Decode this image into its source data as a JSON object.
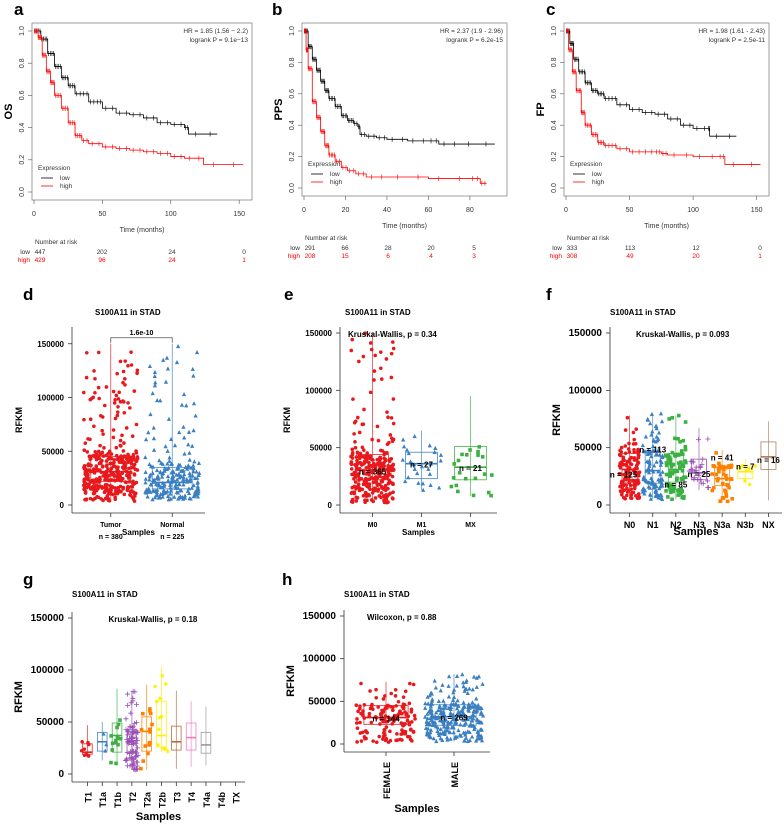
{
  "figure": {
    "km_panels": [
      {
        "letter": "a",
        "ylabel": "OS",
        "xlabel": "Time (months)",
        "hr_text": "HR = 1.85 (1.56 − 2.2)",
        "p_text": "logrank P = 9.1e−13",
        "legend_title": "Expression",
        "legend": [
          "low",
          "high"
        ],
        "risk_title": "Number at risk",
        "risk_labels": [
          "low",
          "high"
        ],
        "risk_low": [
          "447",
          "202",
          "24",
          "0"
        ],
        "risk_high": [
          "429",
          "96",
          "24",
          "1"
        ]
      },
      {
        "letter": "b",
        "ylabel": "PPS",
        "xlabel": "Time (months)",
        "hr_text": "HR = 2.37 (1.9 - 2.96)",
        "p_text": "logrank P = 6.2e-15",
        "legend_title": "Expression",
        "legend": [
          "low",
          "high"
        ],
        "risk_title": "Number at risk",
        "risk_labels": [
          "low",
          "high"
        ],
        "risk_low": [
          "291",
          "66",
          "28",
          "20",
          "5"
        ],
        "risk_high": [
          "208",
          "15",
          "6",
          "4",
          "3"
        ]
      },
      {
        "letter": "c",
        "ylabel": "FP",
        "xlabel": "Time (months)",
        "hr_text": "HR = 1.98 (1.61 - 2.43)",
        "p_text": "logrank P = 2.5e-11",
        "legend_title": "Expression",
        "legend": [
          "low",
          "high"
        ],
        "risk_title": "Number at risk",
        "risk_labels": [
          "low",
          "high"
        ],
        "risk_low": [
          "333",
          "113",
          "12",
          "0"
        ],
        "risk_high": [
          "308",
          "49",
          "20",
          "1"
        ]
      }
    ],
    "box_panels": [
      {
        "letter": "d",
        "title": "S100A11 in STAD",
        "ylabel": "RFKM",
        "xlabel": "Samples",
        "stat_text": "1.6e-10",
        "categories": [
          "Tumor",
          "Normal"
        ],
        "category_sublabels": [
          "n = 380",
          "n = 225"
        ],
        "n_labels": []
      },
      {
        "letter": "e",
        "title": "S100A11 in STAD",
        "ylabel": "RFKM",
        "xlabel": "Samples",
        "stat_text": "Kruskal-Wallis, p = 0.34",
        "categories": [
          "M0",
          "M1",
          "MX"
        ],
        "n_labels": [
          "n = 365",
          "n = 27",
          "n = 21"
        ]
      },
      {
        "letter": "f",
        "title": "S100A11 in STAD",
        "ylabel": "RFKM",
        "xlabel": "Samples",
        "stat_text": "Kruskal-Wallis, p = 0.093",
        "categories": [
          "N0",
          "N1",
          "N2",
          "N3",
          "N3a",
          "N3b",
          "NX"
        ],
        "n_labels": [
          "n = 125",
          "n = 113",
          "n = 85",
          "n = 25",
          "n = 41",
          "n = 7",
          "n = 16"
        ]
      },
      {
        "letter": "g",
        "title": "S100A11 in STAD",
        "ylabel": "RFKM",
        "xlabel": "Samples",
        "stat_text": "Kruskal-Wallis, p = 0.18",
        "categories": [
          "T1",
          "T1a",
          "T1b",
          "T2",
          "T2a",
          "T2b",
          "T3",
          "T4",
          "T4a",
          "T4b",
          "TX"
        ],
        "n_labels": []
      },
      {
        "letter": "h",
        "title": "S100A11 in STAD",
        "ylabel": "RFKM",
        "xlabel": "Samples",
        "stat_text": "Wilcoxon, p = 0.88",
        "categories": [
          "FEMALE",
          "MALE"
        ],
        "n_labels": [
          "n = 144",
          "n = 269"
        ]
      }
    ]
  },
  "chart_data": [
    {
      "type": "line",
      "panel": "a",
      "title": "",
      "xlabel": "Time (months)",
      "ylabel": "OS",
      "xlim": [
        0,
        155
      ],
      "ylim": [
        0,
        1
      ],
      "xticks": [
        0,
        50,
        100,
        150
      ],
      "yticks": [
        0.0,
        0.2,
        0.4,
        0.6,
        0.8,
        1.0
      ],
      "legend_position": "bottom-left",
      "series": [
        {
          "name": "low",
          "color": "#000000",
          "x": [
            0,
            5,
            10,
            15,
            20,
            25,
            30,
            40,
            50,
            60,
            70,
            80,
            90,
            100,
            110,
            113,
            134
          ],
          "y": [
            1.0,
            0.95,
            0.86,
            0.78,
            0.71,
            0.66,
            0.61,
            0.56,
            0.52,
            0.49,
            0.48,
            0.46,
            0.43,
            0.42,
            0.4,
            0.36,
            0.36
          ]
        },
        {
          "name": "high",
          "color": "#ff0000",
          "x": [
            0,
            3,
            6,
            9,
            12,
            15,
            20,
            25,
            30,
            35,
            40,
            50,
            60,
            70,
            80,
            90,
            100,
            110,
            124,
            153
          ],
          "y": [
            1.0,
            0.96,
            0.85,
            0.75,
            0.68,
            0.6,
            0.52,
            0.43,
            0.35,
            0.32,
            0.3,
            0.28,
            0.27,
            0.26,
            0.25,
            0.24,
            0.22,
            0.21,
            0.17,
            0.17
          ]
        }
      ],
      "annotations": [
        "HR = 1.85 (1.56 − 2.2)",
        "logrank P = 9.1e−13"
      ]
    },
    {
      "type": "line",
      "panel": "b",
      "title": "",
      "xlabel": "Time (months)",
      "ylabel": "PPS",
      "xlim": [
        0,
        95
      ],
      "ylim": [
        0,
        1
      ],
      "xticks": [
        0,
        20,
        40,
        60,
        80
      ],
      "yticks": [
        0.0,
        0.2,
        0.4,
        0.6,
        0.8,
        1.0
      ],
      "legend_position": "bottom-left",
      "series": [
        {
          "name": "low",
          "color": "#000000",
          "x": [
            0,
            2,
            4,
            6,
            8,
            10,
            12,
            15,
            18,
            21,
            24,
            26,
            27,
            30,
            35,
            40,
            50,
            60,
            65,
            75,
            92
          ],
          "y": [
            1.0,
            0.9,
            0.82,
            0.75,
            0.68,
            0.62,
            0.57,
            0.52,
            0.46,
            0.43,
            0.41,
            0.39,
            0.34,
            0.33,
            0.32,
            0.31,
            0.3,
            0.3,
            0.28,
            0.28,
            0.28
          ]
        },
        {
          "name": "high",
          "color": "#ff0000",
          "x": [
            0,
            1,
            2,
            4,
            6,
            8,
            10,
            12,
            15,
            18,
            21,
            25,
            30,
            40,
            60,
            80,
            85,
            88
          ],
          "y": [
            1.0,
            0.88,
            0.76,
            0.55,
            0.45,
            0.36,
            0.27,
            0.21,
            0.17,
            0.13,
            0.11,
            0.09,
            0.07,
            0.07,
            0.06,
            0.06,
            0.03,
            0.03
          ]
        }
      ],
      "annotations": [
        "HR = 2.37 (1.9 - 2.96)",
        "logrank P = 6.2e-15"
      ]
    },
    {
      "type": "line",
      "panel": "c",
      "title": "",
      "xlabel": "Time (months)",
      "ylabel": "FP",
      "xlim": [
        0,
        155
      ],
      "ylim": [
        0,
        1
      ],
      "xticks": [
        0,
        50,
        100,
        150
      ],
      "yticks": [
        0.0,
        0.2,
        0.4,
        0.6,
        0.8,
        1.0
      ],
      "legend_position": "bottom-left",
      "series": [
        {
          "name": "low",
          "color": "#000000",
          "x": [
            0,
            3,
            6,
            10,
            15,
            20,
            25,
            30,
            40,
            50,
            60,
            70,
            80,
            90,
            100,
            112,
            113,
            134
          ],
          "y": [
            1.0,
            0.92,
            0.82,
            0.74,
            0.67,
            0.62,
            0.6,
            0.57,
            0.53,
            0.5,
            0.48,
            0.47,
            0.44,
            0.4,
            0.38,
            0.38,
            0.33,
            0.33
          ]
        },
        {
          "name": "high",
          "color": "#ff0000",
          "x": [
            0,
            2,
            5,
            8,
            12,
            15,
            20,
            25,
            30,
            40,
            50,
            60,
            70,
            75,
            80,
            100,
            120,
            125,
            153
          ],
          "y": [
            1.0,
            0.88,
            0.74,
            0.62,
            0.48,
            0.4,
            0.34,
            0.29,
            0.27,
            0.25,
            0.23,
            0.23,
            0.23,
            0.22,
            0.21,
            0.2,
            0.2,
            0.15,
            0.15
          ]
        }
      ],
      "annotations": [
        "HR = 1.98 (1.61 - 2.43)",
        "logrank P = 2.5e-11"
      ]
    },
    {
      "type": "box",
      "panel": "d",
      "title": "S100A11 in STAD",
      "xlabel": "Samples",
      "ylabel": "RFKM",
      "ylim": [
        0,
        160000
      ],
      "yticks": [
        0,
        50000,
        100000,
        150000
      ],
      "categories": [
        "Tumor",
        "Normal"
      ],
      "colors": [
        "#e8191c",
        "#3a7fc1"
      ],
      "markers": [
        "circle",
        "triangle"
      ],
      "n": [
        380,
        225
      ],
      "box": [
        {
          "q1": 22000,
          "median": 31000,
          "q3": 45000,
          "whisker_low": 3000,
          "whisker_high": 150000
        },
        {
          "q1": 15000,
          "median": 21000,
          "q3": 35000,
          "whisker_low": 5000,
          "whisker_high": 150000
        }
      ],
      "annotation": "1.6e-10"
    },
    {
      "type": "box",
      "panel": "e",
      "title": "S100A11 in STAD",
      "xlabel": "Samples",
      "ylabel": "RFKM",
      "ylim": [
        0,
        150000
      ],
      "yticks": [
        0,
        50000,
        100000,
        150000
      ],
      "categories": [
        "M0",
        "M1",
        "MX"
      ],
      "colors": [
        "#e8191c",
        "#3a7fc1",
        "#3cb043"
      ],
      "markers": [
        "circle",
        "triangle",
        "square"
      ],
      "n": [
        365,
        27,
        21
      ],
      "box": [
        {
          "q1": 22000,
          "median": 30000,
          "q3": 44000,
          "whisker_low": 2000,
          "whisker_high": 150000
        },
        {
          "q1": 23000,
          "median": 36000,
          "q3": 46000,
          "whisker_low": 13000,
          "whisker_high": 65000
        },
        {
          "q1": 22000,
          "median": 33000,
          "q3": 51000,
          "whisker_low": 8000,
          "whisker_high": 95000
        }
      ],
      "annotation": "Kruskal-Wallis, p = 0.34"
    },
    {
      "type": "box",
      "panel": "f",
      "title": "S100A11 in STAD",
      "xlabel": "Samples",
      "ylabel": "RFKM",
      "ylim": [
        0,
        150000
      ],
      "yticks": [
        0,
        50000,
        100000,
        150000
      ],
      "categories": [
        "N0",
        "N1",
        "N2",
        "N3",
        "N3a",
        "N3b",
        "NX"
      ],
      "colors": [
        "#e8191c",
        "#3a7fc1",
        "#3cb043",
        "#9b4fb4",
        "#ff8000",
        "#ffee00",
        "#b07a5a"
      ],
      "markers": [
        "circle",
        "triangle",
        "square",
        "plus",
        "square-x",
        "asterisk",
        "none"
      ],
      "n": [
        125,
        113,
        85,
        25,
        41,
        7,
        16
      ],
      "box": [
        {
          "q1": 20000,
          "median": 31000,
          "q3": 45000,
          "whisker_low": 5000,
          "whisker_high": 78000
        },
        {
          "q1": 19000,
          "median": 30000,
          "q3": 47000,
          "whisker_low": 5000,
          "whisker_high": 80000
        },
        {
          "q1": 20000,
          "median": 31000,
          "q3": 45000,
          "whisker_low": 5000,
          "whisker_high": 78000
        },
        {
          "q1": 22000,
          "median": 28000,
          "q3": 40000,
          "whisker_low": 13000,
          "whisker_high": 67000
        },
        {
          "q1": 17000,
          "median": 23000,
          "q3": 33000,
          "whisker_low": 2000,
          "whisker_high": 48000
        },
        {
          "q1": 23000,
          "median": 29000,
          "q3": 34000,
          "whisker_low": 18000,
          "whisker_high": 40000
        },
        {
          "q1": 31000,
          "median": 42000,
          "q3": 55000,
          "whisker_low": 4000,
          "whisker_high": 73000
        }
      ],
      "annotation": "Kruskal-Wallis, p = 0.093"
    },
    {
      "type": "box",
      "panel": "g",
      "title": "S100A11 in STAD",
      "xlabel": "Samples",
      "ylabel": "RFKM",
      "ylim": [
        0,
        150000
      ],
      "yticks": [
        0,
        50000,
        100000,
        150000
      ],
      "categories": [
        "T1",
        "T1a",
        "T1b",
        "T2",
        "T2a",
        "T2b",
        "T3",
        "T4",
        "T4a",
        "T4b",
        "TX"
      ],
      "colors": [
        "#e8191c",
        "#3a7fc1",
        "#3cb043",
        "#9b4fb4",
        "#ff8000",
        "#ffee00",
        "#b06a3a",
        "#f27bbd",
        "#999999",
        "#999999",
        "#999999"
      ],
      "box": [
        {
          "q1": 19000,
          "median": 21000,
          "q3": 29000,
          "whisker_low": 17000,
          "whisker_high": 47000
        },
        {
          "q1": 22000,
          "median": 31000,
          "q3": 40000,
          "whisker_low": 13000,
          "whisker_high": 50000
        },
        {
          "q1": 21000,
          "median": 37000,
          "q3": 49000,
          "whisker_low": 8000,
          "whisker_high": 82000
        },
        {
          "q1": 20000,
          "median": 32000,
          "q3": 43000,
          "whisker_low": 4000,
          "whisker_high": 80000
        },
        {
          "q1": 22000,
          "median": 41000,
          "q3": 55000,
          "whisker_low": 4000,
          "whisker_high": 86000
        },
        {
          "q1": 26000,
          "median": 37000,
          "q3": 70000,
          "whisker_low": 21000,
          "whisker_high": 104000
        },
        {
          "q1": 23000,
          "median": 31000,
          "q3": 46000,
          "whisker_low": 5000,
          "whisker_high": 80000
        },
        {
          "q1": 23000,
          "median": 35000,
          "q3": 49000,
          "whisker_low": 7000,
          "whisker_high": 70000
        },
        {
          "q1": 20000,
          "median": 28000,
          "q3": 40000,
          "whisker_low": 8000,
          "whisker_high": 65000
        },
        null,
        null
      ],
      "annotation": "Kruskal-Wallis, p = 0.18"
    },
    {
      "type": "box",
      "panel": "h",
      "title": "S100A11 in STAD",
      "xlabel": "Samples",
      "ylabel": "RFKM",
      "ylim": [
        0,
        150000
      ],
      "yticks": [
        0,
        50000,
        100000,
        150000
      ],
      "categories": [
        "FEMALE",
        "MALE"
      ],
      "colors": [
        "#e8191c",
        "#3a7fc1"
      ],
      "markers": [
        "circle",
        "triangle"
      ],
      "n": [
        144,
        269
      ],
      "box": [
        {
          "q1": 23000,
          "median": 31000,
          "q3": 45000,
          "whisker_low": 2000,
          "whisker_high": 73000
        },
        {
          "q1": 22000,
          "median": 32000,
          "q3": 46000,
          "whisker_low": 3000,
          "whisker_high": 82000
        }
      ],
      "annotation": "Wilcoxon, p = 0.88"
    }
  ]
}
